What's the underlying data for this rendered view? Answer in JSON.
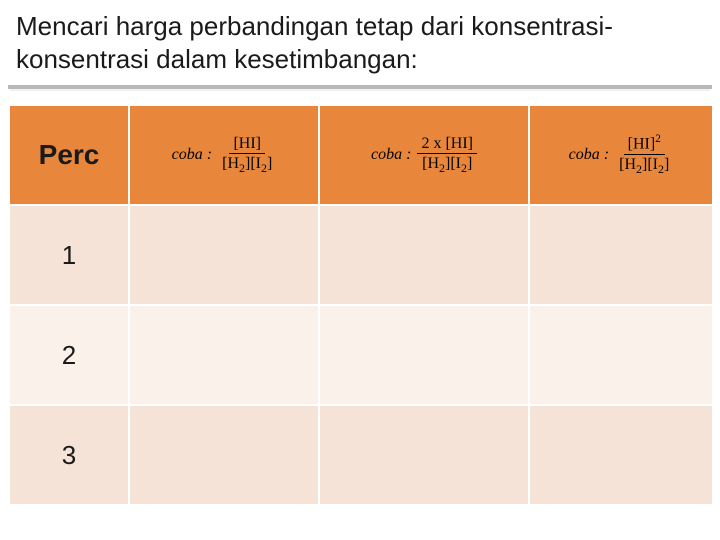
{
  "title": "Mencari harga perbandingan tetap dari konsentrasi-konsentrasi dalam kesetimbangan:",
  "table": {
    "header_bg": "#e8873b",
    "row_bg_odd": "#f5e3d7",
    "row_bg_even": "#f9f1ea",
    "col_widths": [
      "120px",
      "190px",
      "210px",
      "184px"
    ],
    "columns": {
      "perc": "Perc",
      "formula_label": "coba :",
      "f1_num": "[HI]",
      "f1_den_a": "[H",
      "f1_den_a_sub": "2",
      "f1_den_b": "][I",
      "f1_den_b_sub": "2",
      "f1_den_c": "]",
      "f2_num_a": "2 x [HI]",
      "f2_den_a": "[H",
      "f2_den_a_sub": "2",
      "f2_den_b": "][I",
      "f2_den_b_sub": "2",
      "f2_den_c": "]",
      "f3_num_a": "[HI]",
      "f3_num_sup": "2",
      "f3_den_a": "[H",
      "f3_den_a_sub": "2",
      "f3_den_b": "][I",
      "f3_den_b_sub": "2",
      "f3_den_c": "]"
    },
    "rows": [
      {
        "perc": "1"
      },
      {
        "perc": "2"
      },
      {
        "perc": "3"
      }
    ]
  }
}
